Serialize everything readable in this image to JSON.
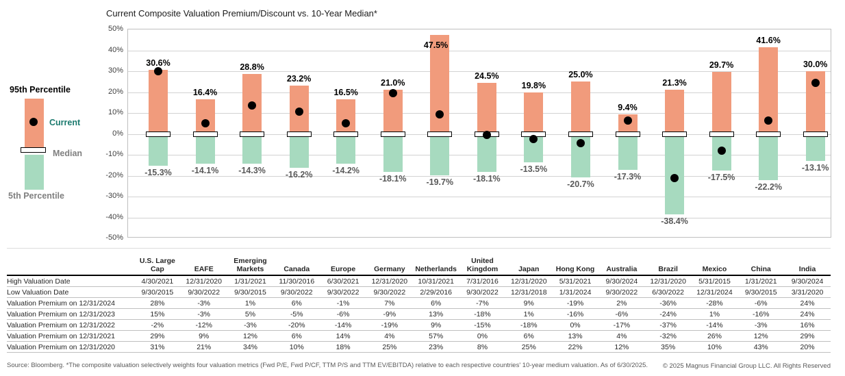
{
  "legend": {
    "p95": "95th Percentile",
    "current": "Current",
    "median": "Median",
    "p5": "5th Percentile"
  },
  "colors": {
    "bar_above_median": "#F19B7C",
    "bar_below_median": "#A7DABF",
    "current_text": "#1B7A6E",
    "muted_text": "#7F7F7F",
    "negative_label_text": "#595959"
  },
  "chart_data": {
    "type": "bar",
    "title": "Current Composite Valuation Premium/Discount vs. 10-Year Median*",
    "categories": [
      "U.S. Large Cap",
      "EAFE",
      "Emerging Markets",
      "Canada",
      "Europe",
      "Germany",
      "Netherlands",
      "United Kingdom",
      "Japan",
      "Hong Kong",
      "Australia",
      "Brazil",
      "Mexico",
      "China",
      "India"
    ],
    "series": [
      {
        "name": "95th Percentile",
        "values": [
          30.6,
          16.4,
          28.8,
          23.2,
          16.5,
          21.0,
          47.5,
          24.5,
          19.8,
          25.0,
          9.4,
          21.3,
          29.7,
          41.6,
          30.0
        ]
      },
      {
        "name": "5th Percentile",
        "values": [
          -15.3,
          -14.1,
          -14.3,
          -16.2,
          -14.2,
          -18.1,
          -19.7,
          -18.1,
          -13.5,
          -20.7,
          -17.3,
          -38.4,
          -17.5,
          -22.2,
          -13.1
        ]
      },
      {
        "name": "Current",
        "values": [
          30,
          5,
          13.5,
          10.5,
          5,
          19.5,
          9.5,
          -0.5,
          -2.5,
          -4.5,
          6.5,
          -21,
          -8,
          6.5,
          24.5
        ]
      },
      {
        "name": "Median",
        "values": [
          0,
          0,
          0,
          0,
          0,
          0,
          0,
          0,
          0,
          0,
          0,
          0,
          0,
          0,
          0
        ]
      }
    ],
    "ylim": [
      -50,
      50
    ],
    "ytick_step": 10,
    "ytick_suffix": "%",
    "grid": true,
    "legend_position": "left"
  },
  "table": {
    "columns": [
      "U.S. Large Cap",
      "EAFE",
      "Emerging Markets",
      "Canada",
      "Europe",
      "Germany",
      "Netherlands",
      "United Kingdom",
      "Japan",
      "Hong Kong",
      "Australia",
      "Brazil",
      "Mexico",
      "China",
      "India"
    ],
    "rows": [
      {
        "label": "High Valuation Date",
        "values": [
          "4/30/2021",
          "12/31/2020",
          "1/31/2021",
          "11/30/2016",
          "6/30/2021",
          "12/31/2020",
          "10/31/2021",
          "7/31/2016",
          "12/31/2020",
          "5/31/2021",
          "9/30/2024",
          "12/31/2020",
          "5/31/2015",
          "1/31/2021",
          "9/30/2024"
        ]
      },
      {
        "label": "Low Valuation Date",
        "values": [
          "9/30/2015",
          "9/30/2022",
          "9/30/2015",
          "9/30/2022",
          "9/30/2022",
          "9/30/2022",
          "2/29/2016",
          "9/30/2022",
          "12/31/2018",
          "1/31/2024",
          "9/30/2022",
          "6/30/2022",
          "12/31/2024",
          "9/30/2015",
          "3/31/2020"
        ]
      },
      {
        "label": "Valuation Premium on 12/31/2024",
        "values": [
          "28%",
          "-3%",
          "1%",
          "6%",
          "-1%",
          "7%",
          "6%",
          "-7%",
          "9%",
          "-19%",
          "2%",
          "-36%",
          "-28%",
          "-6%",
          "24%"
        ]
      },
      {
        "label": "Valuation Premium on 12/31/2023",
        "values": [
          "15%",
          "-3%",
          "5%",
          "-5%",
          "-6%",
          "-9%",
          "13%",
          "-18%",
          "1%",
          "-16%",
          "-6%",
          "-24%",
          "1%",
          "-16%",
          "24%"
        ]
      },
      {
        "label": "Valuation Premium on 12/31/2022",
        "values": [
          "-2%",
          "-12%",
          "-3%",
          "-20%",
          "-14%",
          "-19%",
          "9%",
          "-15%",
          "-18%",
          "0%",
          "-17%",
          "-37%",
          "-14%",
          "-3%",
          "16%"
        ]
      },
      {
        "label": "Valuation Premium on 12/31/2021",
        "values": [
          "29%",
          "9%",
          "12%",
          "6%",
          "14%",
          "4%",
          "57%",
          "0%",
          "6%",
          "13%",
          "4%",
          "-32%",
          "26%",
          "12%",
          "29%"
        ]
      },
      {
        "label": "Valuation Premium on 12/31/2020",
        "values": [
          "31%",
          "21%",
          "34%",
          "10%",
          "18%",
          "25%",
          "23%",
          "8%",
          "25%",
          "22%",
          "12%",
          "35%",
          "10%",
          "43%",
          "20%"
        ]
      }
    ]
  },
  "footer": {
    "source": "Source: Bloomberg. *The composite valuation selectively weights four valuation metrics (Fwd P/E, Fwd P/CF, TTM P/S and TTM EV/EBITDA) relative to each respective countries' 10-year medium valuation. As of 6/30/2025.",
    "copyright": "© 2025 Magnus Financial Group LLC. All Rights Reserved"
  }
}
